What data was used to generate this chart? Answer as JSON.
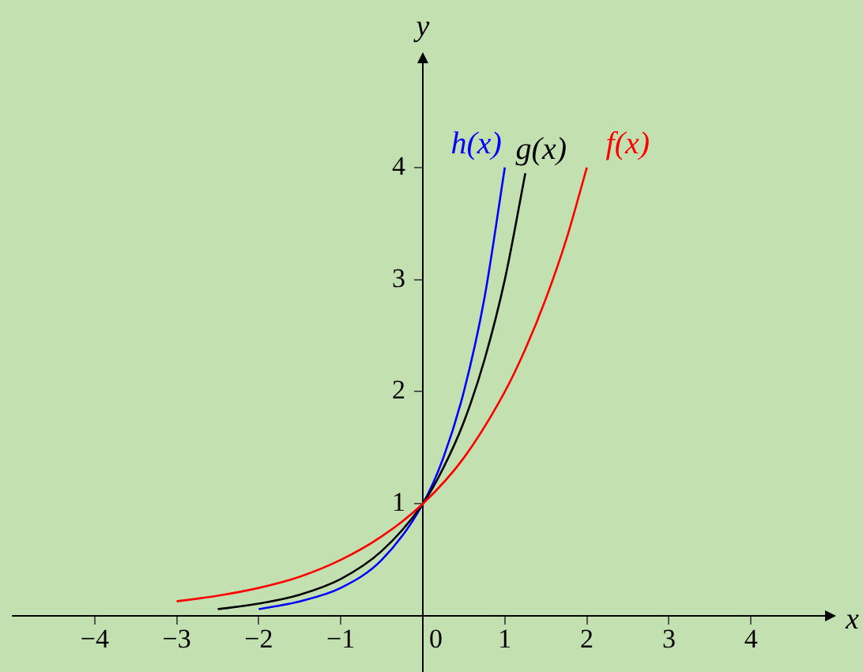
{
  "chart_data": {
    "type": "line",
    "xlabel": "x",
    "ylabel": "y",
    "xlim": [
      -5,
      5
    ],
    "ylim": [
      -0.5,
      5
    ],
    "xticks": [
      -4,
      -3,
      -2,
      -1,
      0,
      1,
      2,
      3,
      4
    ],
    "yticks": [
      1,
      2,
      3,
      4
    ],
    "grid": false,
    "legend": false,
    "marker": "none",
    "line_style": "solid",
    "series": [
      {
        "name": "f(x)",
        "color": "#ff0000",
        "x": [
          -3,
          -2.5,
          -2,
          -1.5,
          -1,
          -0.5,
          0,
          0.5,
          1,
          1.25,
          1.5,
          1.75,
          2
        ],
        "values": [
          0.13,
          0.18,
          0.25,
          0.35,
          0.5,
          0.71,
          1,
          1.41,
          2,
          2.38,
          2.83,
          3.36,
          4
        ]
      },
      {
        "name": "g(x)",
        "color": "#000000",
        "x": [
          -2.5,
          -2,
          -1.5,
          -1,
          -0.5,
          0,
          0.25,
          0.5,
          0.75,
          1,
          1.25
        ],
        "values": [
          0.06,
          0.11,
          0.19,
          0.33,
          0.58,
          1,
          1.32,
          1.73,
          2.28,
          3,
          3.95
        ]
      },
      {
        "name": "h(x)",
        "color": "#0000ff",
        "x": [
          -2,
          -1.5,
          -1,
          -0.5,
          0,
          0.25,
          0.5,
          0.75,
          1
        ],
        "values": [
          0.06,
          0.13,
          0.25,
          0.5,
          1,
          1.41,
          2,
          2.83,
          4
        ]
      }
    ]
  }
}
